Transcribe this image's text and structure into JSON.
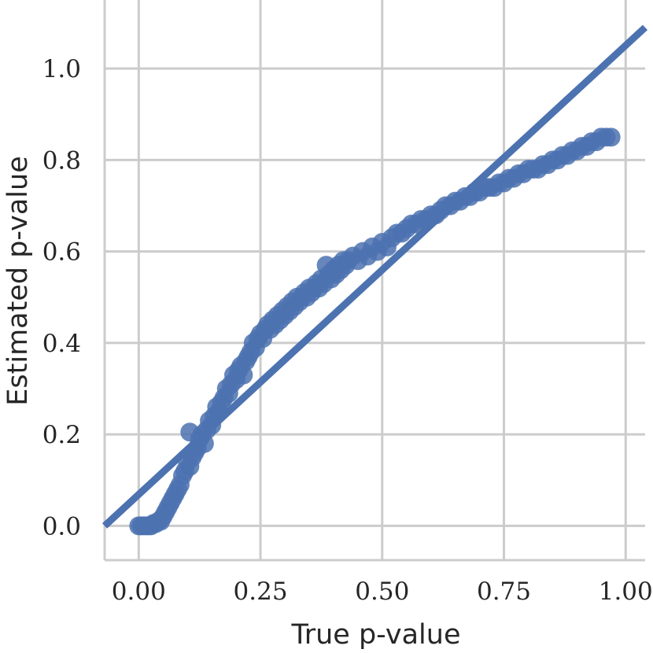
{
  "chart_data": {
    "type": "scatter",
    "title": "",
    "xlabel": "True p-value",
    "ylabel": "Estimated p-value",
    "xlim": [
      -0.07,
      1.04
    ],
    "ylim": [
      -0.075,
      1.15
    ],
    "xticks": [
      0.0,
      0.25,
      0.5,
      0.75,
      1.0
    ],
    "xtick_labels": [
      "0.00",
      "0.25",
      "0.50",
      "0.75",
      "1.00"
    ],
    "yticks": [
      0.0,
      0.2,
      0.4,
      0.6,
      0.8,
      1.0
    ],
    "ytick_labels": [
      "0.0",
      "0.2",
      "0.4",
      "0.6",
      "0.8",
      "1.0"
    ],
    "grid": true,
    "legend": "none",
    "colors": {
      "points": "#4c72b0",
      "line": "#4c72b0",
      "grid": "#cccccc",
      "spines": "#cccccc"
    },
    "series": [
      {
        "kind": "scatter",
        "points": [
          [
            0.0,
            0.0
          ],
          [
            0.005,
            0.0
          ],
          [
            0.01,
            0.0
          ],
          [
            0.015,
            0.0
          ],
          [
            0.02,
            0.0
          ],
          [
            0.025,
            0.0
          ],
          [
            0.03,
            0.005
          ],
          [
            0.035,
            0.005
          ],
          [
            0.04,
            0.01
          ],
          [
            0.045,
            0.01
          ],
          [
            0.05,
            0.02
          ],
          [
            0.055,
            0.03
          ],
          [
            0.06,
            0.04
          ],
          [
            0.065,
            0.05
          ],
          [
            0.07,
            0.06
          ],
          [
            0.075,
            0.07
          ],
          [
            0.08,
            0.08
          ],
          [
            0.085,
            0.09
          ],
          [
            0.09,
            0.11
          ],
          [
            0.095,
            0.12
          ],
          [
            0.1,
            0.14
          ],
          [
            0.105,
            0.13
          ],
          [
            0.11,
            0.15
          ],
          [
            0.115,
            0.16
          ],
          [
            0.12,
            0.17
          ],
          [
            0.125,
            0.19
          ],
          [
            0.13,
            0.2
          ],
          [
            0.105,
            0.205
          ],
          [
            0.135,
            0.18
          ],
          [
            0.14,
            0.21
          ],
          [
            0.145,
            0.23
          ],
          [
            0.15,
            0.22
          ],
          [
            0.155,
            0.24
          ],
          [
            0.16,
            0.26
          ],
          [
            0.165,
            0.25
          ],
          [
            0.17,
            0.27
          ],
          [
            0.175,
            0.28
          ],
          [
            0.18,
            0.3
          ],
          [
            0.185,
            0.29
          ],
          [
            0.19,
            0.31
          ],
          [
            0.195,
            0.33
          ],
          [
            0.2,
            0.32
          ],
          [
            0.205,
            0.34
          ],
          [
            0.21,
            0.35
          ],
          [
            0.215,
            0.33
          ],
          [
            0.22,
            0.36
          ],
          [
            0.225,
            0.37
          ],
          [
            0.23,
            0.38
          ],
          [
            0.235,
            0.4
          ],
          [
            0.24,
            0.39
          ],
          [
            0.245,
            0.41
          ],
          [
            0.25,
            0.42
          ],
          [
            0.255,
            0.41
          ],
          [
            0.26,
            0.43
          ],
          [
            0.265,
            0.44
          ],
          [
            0.27,
            0.43
          ],
          [
            0.275,
            0.45
          ],
          [
            0.28,
            0.44
          ],
          [
            0.285,
            0.46
          ],
          [
            0.29,
            0.45
          ],
          [
            0.295,
            0.47
          ],
          [
            0.3,
            0.46
          ],
          [
            0.305,
            0.48
          ],
          [
            0.31,
            0.47
          ],
          [
            0.315,
            0.49
          ],
          [
            0.32,
            0.48
          ],
          [
            0.325,
            0.5
          ],
          [
            0.33,
            0.49
          ],
          [
            0.335,
            0.5
          ],
          [
            0.34,
            0.51
          ],
          [
            0.345,
            0.5
          ],
          [
            0.35,
            0.52
          ],
          [
            0.355,
            0.51
          ],
          [
            0.36,
            0.52
          ],
          [
            0.365,
            0.53
          ],
          [
            0.37,
            0.52
          ],
          [
            0.375,
            0.54
          ],
          [
            0.38,
            0.53
          ],
          [
            0.385,
            0.57
          ],
          [
            0.39,
            0.55
          ],
          [
            0.395,
            0.54
          ],
          [
            0.4,
            0.56
          ],
          [
            0.405,
            0.55
          ],
          [
            0.41,
            0.57
          ],
          [
            0.415,
            0.56
          ],
          [
            0.42,
            0.58
          ],
          [
            0.425,
            0.57
          ],
          [
            0.43,
            0.58
          ],
          [
            0.44,
            0.59
          ],
          [
            0.45,
            0.58
          ],
          [
            0.46,
            0.6
          ],
          [
            0.47,
            0.59
          ],
          [
            0.48,
            0.61
          ],
          [
            0.49,
            0.6
          ],
          [
            0.5,
            0.62
          ],
          [
            0.51,
            0.61
          ],
          [
            0.52,
            0.63
          ],
          [
            0.53,
            0.64
          ],
          [
            0.54,
            0.64
          ],
          [
            0.55,
            0.65
          ],
          [
            0.56,
            0.66
          ],
          [
            0.57,
            0.66
          ],
          [
            0.58,
            0.67
          ],
          [
            0.59,
            0.67
          ],
          [
            0.6,
            0.68
          ],
          [
            0.61,
            0.68
          ],
          [
            0.62,
            0.69
          ],
          [
            0.63,
            0.7
          ],
          [
            0.64,
            0.7
          ],
          [
            0.65,
            0.71
          ],
          [
            0.66,
            0.71
          ],
          [
            0.67,
            0.72
          ],
          [
            0.68,
            0.72
          ],
          [
            0.69,
            0.73
          ],
          [
            0.7,
            0.73
          ],
          [
            0.71,
            0.74
          ],
          [
            0.72,
            0.74
          ],
          [
            0.73,
            0.74
          ],
          [
            0.74,
            0.75
          ],
          [
            0.75,
            0.75
          ],
          [
            0.76,
            0.76
          ],
          [
            0.77,
            0.76
          ],
          [
            0.78,
            0.77
          ],
          [
            0.79,
            0.77
          ],
          [
            0.8,
            0.78
          ],
          [
            0.81,
            0.78
          ],
          [
            0.82,
            0.78
          ],
          [
            0.83,
            0.79
          ],
          [
            0.84,
            0.79
          ],
          [
            0.85,
            0.8
          ],
          [
            0.86,
            0.8
          ],
          [
            0.87,
            0.81
          ],
          [
            0.88,
            0.81
          ],
          [
            0.89,
            0.82
          ],
          [
            0.9,
            0.82
          ],
          [
            0.91,
            0.83
          ],
          [
            0.92,
            0.83
          ],
          [
            0.93,
            0.84
          ],
          [
            0.94,
            0.84
          ],
          [
            0.95,
            0.85
          ],
          [
            0.96,
            0.85
          ],
          [
            0.97,
            0.85
          ]
        ]
      },
      {
        "kind": "regression",
        "line": [
          [
            -0.07,
            0.0
          ],
          [
            1.04,
            1.09
          ]
        ]
      }
    ]
  }
}
